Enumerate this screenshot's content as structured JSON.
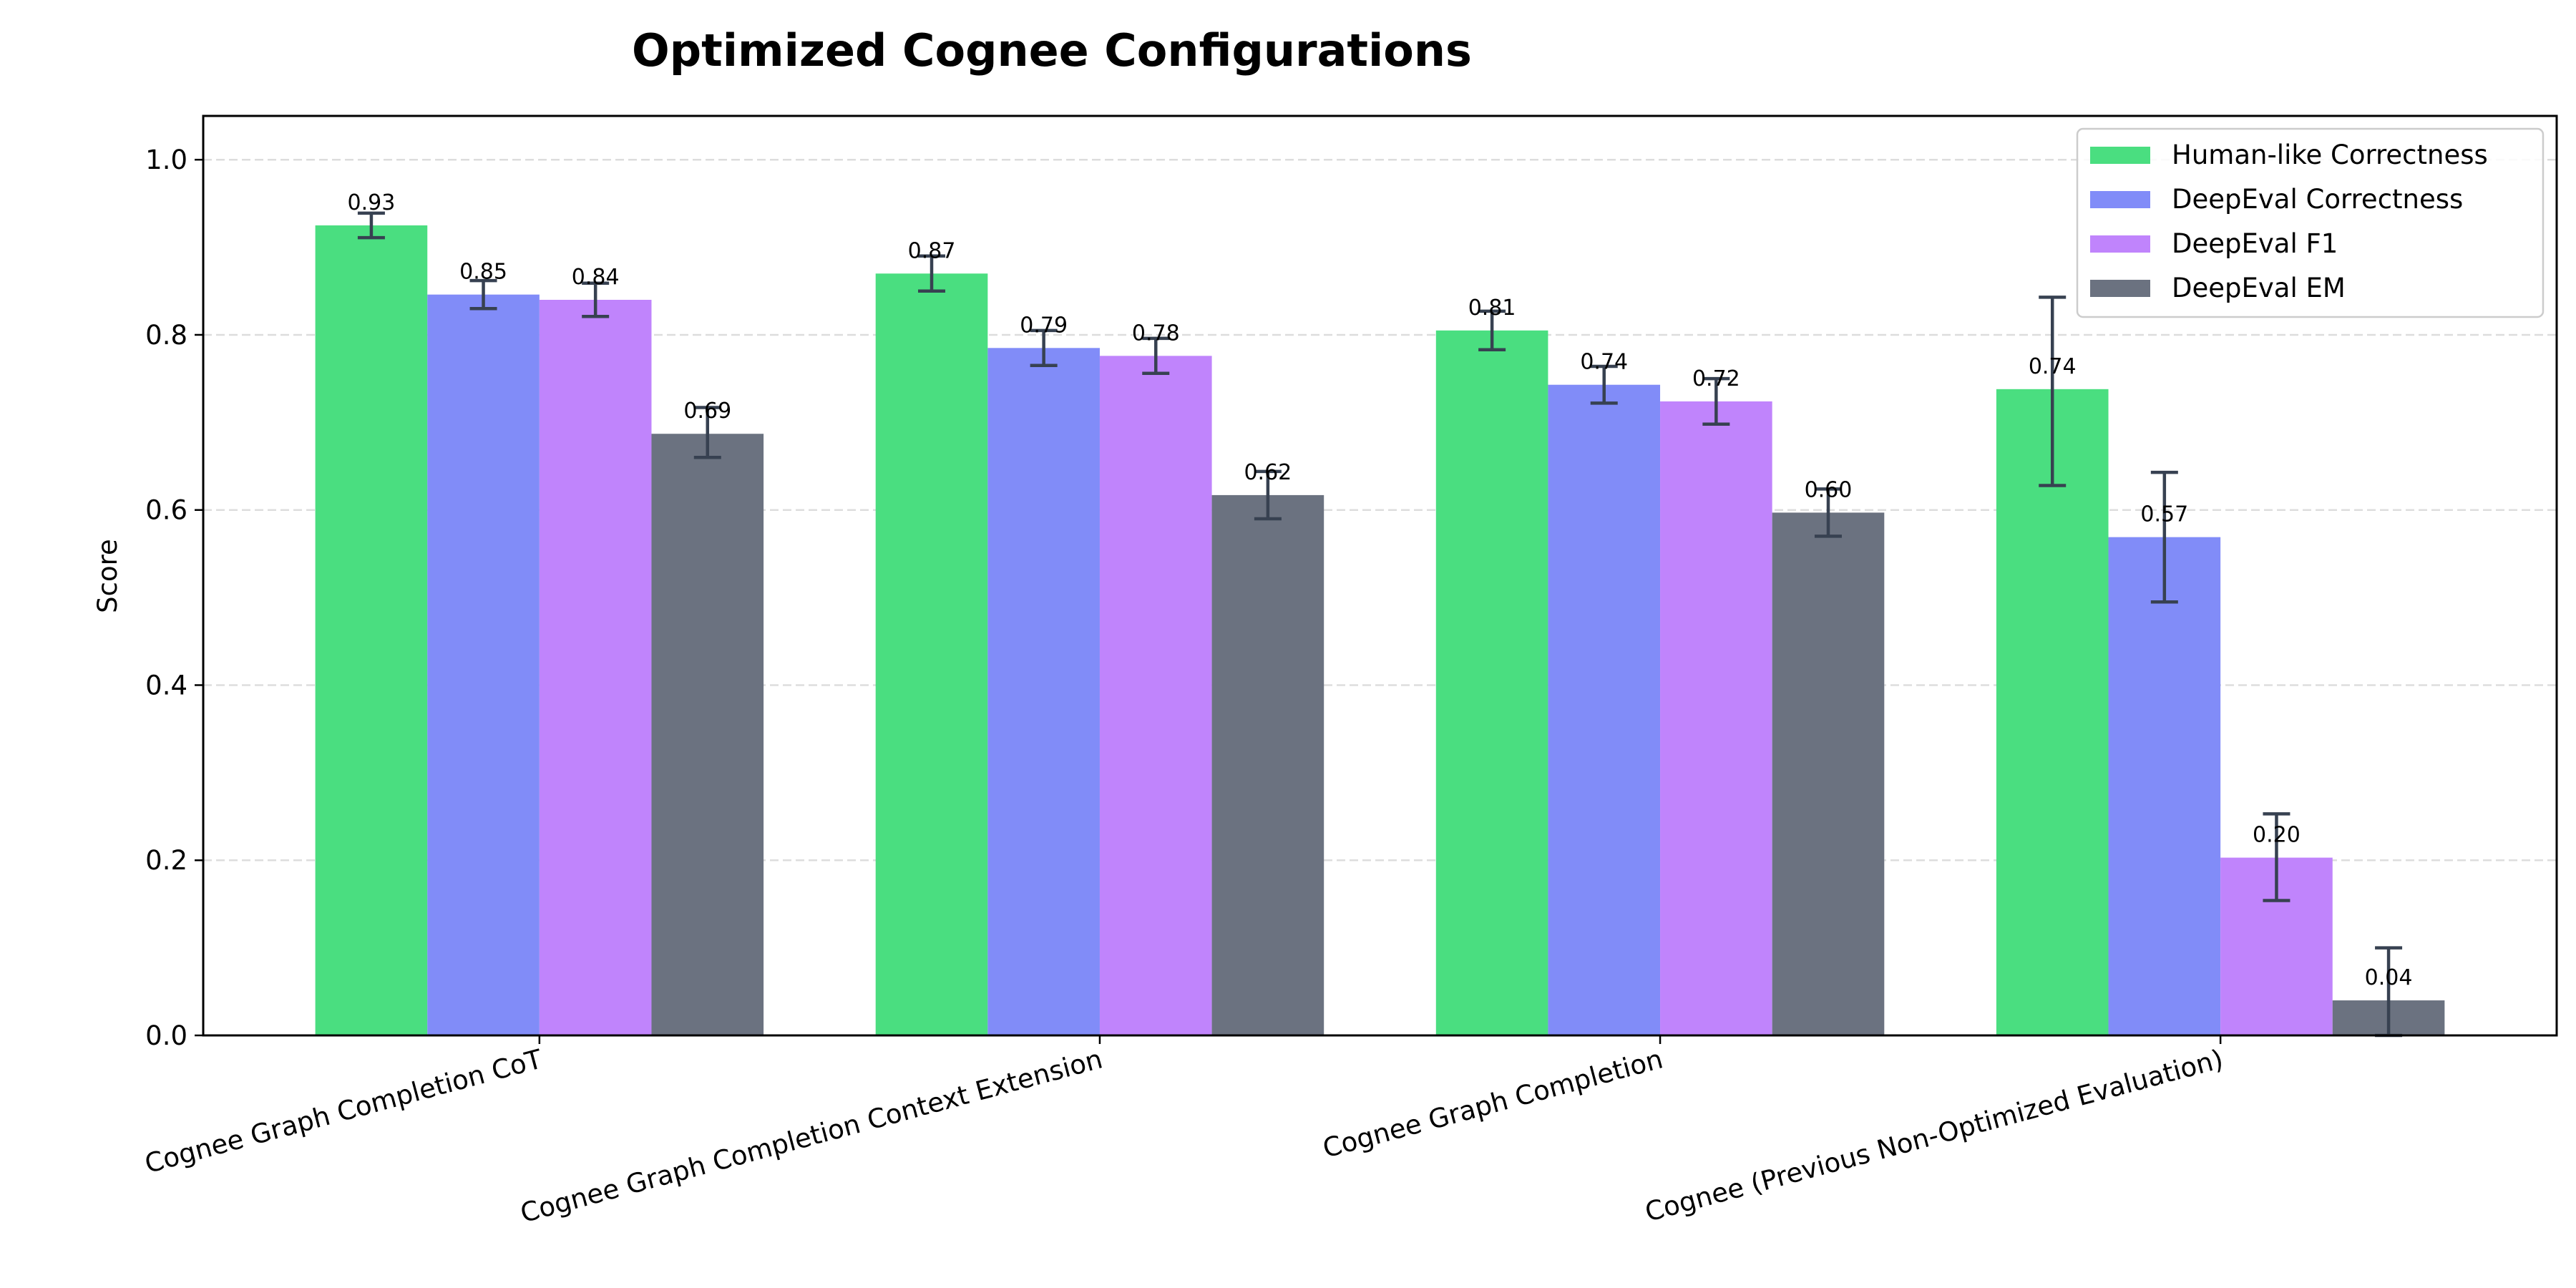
{
  "chart_data": {
    "type": "bar",
    "title": "Optimized Cognee Configurations",
    "xlabel": "",
    "ylabel": "Score",
    "ylim": [
      0,
      1.05
    ],
    "yticks": [
      "0.0",
      "0.2",
      "0.4",
      "0.6",
      "0.8",
      "1.0"
    ],
    "grid": "y dashed",
    "legend_position": "top-right",
    "categories": [
      "Cognee Graph Completion CoT",
      "Cognee Graph Completion Context Extension",
      "Cognee Graph Completion",
      "Cognee (Previous Non-Optimized Evaluation)"
    ],
    "series": [
      {
        "name": "Human-like Correctness",
        "color": "#4ade80",
        "values": [
          0.925,
          0.87,
          0.805,
          0.738
        ],
        "labels": [
          "0.93",
          "0.87",
          "0.81",
          "0.74"
        ],
        "err_lower": [
          0.014,
          0.02,
          0.022,
          0.11
        ],
        "err_upper": [
          0.014,
          0.02,
          0.022,
          0.105
        ]
      },
      {
        "name": "DeepEval Correctness",
        "color": "#818cf8",
        "values": [
          0.846,
          0.785,
          0.743,
          0.569
        ],
        "labels": [
          "0.85",
          "0.79",
          "0.74",
          "0.57"
        ],
        "err_lower": [
          0.016,
          0.02,
          0.021,
          0.074
        ],
        "err_upper": [
          0.016,
          0.02,
          0.021,
          0.074
        ]
      },
      {
        "name": "DeepEval F1",
        "color": "#c084fc",
        "values": [
          0.84,
          0.776,
          0.724,
          0.203
        ],
        "labels": [
          "0.84",
          "0.78",
          "0.72",
          "0.20"
        ],
        "err_lower": [
          0.019,
          0.02,
          0.026,
          0.049
        ],
        "err_upper": [
          0.019,
          0.02,
          0.026,
          0.05
        ]
      },
      {
        "name": "DeepEval EM",
        "color": "#6b7280",
        "values": [
          0.687,
          0.617,
          0.597,
          0.04
        ],
        "labels": [
          "0.69",
          "0.62",
          "0.60",
          "0.04"
        ],
        "err_lower": [
          0.027,
          0.027,
          0.027,
          0.04
        ],
        "err_upper": [
          0.03,
          0.027,
          0.027,
          0.06
        ]
      }
    ],
    "error_bar_color": "#374151"
  }
}
